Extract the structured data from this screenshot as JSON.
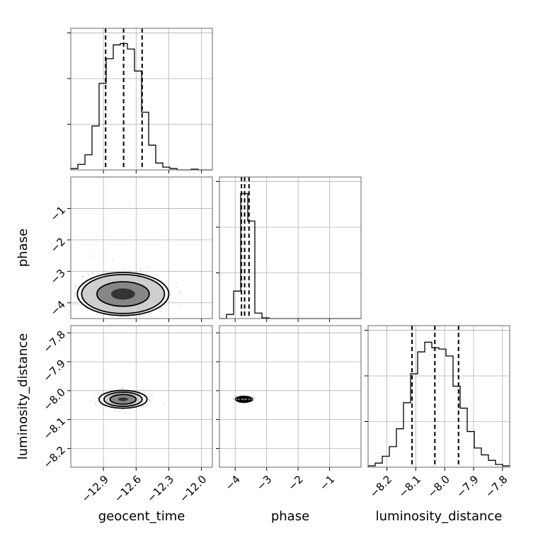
{
  "chart_data": {
    "type": "corner",
    "parameters": [
      "geocent_time",
      "phase",
      "luminosity_distance"
    ],
    "ranges": {
      "geocent_time": [
        -13.2,
        -11.9
      ],
      "phase": [
        -4.5,
        0.0
      ],
      "luminosity_distance": [
        -8.265,
        -7.775
      ]
    },
    "ticks": {
      "geocent_time": [
        -12.9,
        -12.6,
        -12.3,
        -12.0
      ],
      "phase": [
        -4,
        -3,
        -2,
        -1
      ],
      "luminosity_distance": [
        -8.2,
        -8.1,
        -8.0,
        -7.9,
        -7.8
      ]
    },
    "tick_labels": {
      "geocent_time": [
        "−12.9",
        "−12.6",
        "−12.3",
        "−12.0"
      ],
      "phase": [
        "−4",
        "−3",
        "−2",
        "−1"
      ],
      "luminosity_distance": [
        "−8.2",
        "−8.1",
        "−8.0",
        "−7.9",
        "−7.8"
      ]
    },
    "axis_labels": {
      "x": [
        "geocent_time",
        "phase",
        "luminosity_distance"
      ],
      "y": [
        "phase",
        "luminosity_distance"
      ]
    },
    "histograms": {
      "geocent_time": {
        "edges": [
          -13.2,
          -13.135,
          -13.07,
          -13.005,
          -12.94,
          -12.875,
          -12.81,
          -12.745,
          -12.68,
          -12.615,
          -12.55,
          -12.485,
          -12.42,
          -12.355,
          -12.29,
          -12.225,
          -12.16,
          -12.095,
          -12.03,
          -11.965,
          -11.9
        ],
        "counts": [
          0.01,
          0.04,
          0.11,
          0.32,
          0.63,
          0.81,
          0.91,
          0.92,
          0.88,
          0.72,
          0.42,
          0.18,
          0.05,
          0.02,
          0.01,
          0.0,
          0.0,
          0.005,
          0.0,
          0.0
        ],
        "quantiles": [
          -12.88,
          -12.715,
          -12.545
        ]
      },
      "phase": {
        "edges": [
          -4.5,
          -4.275,
          -4.05,
          -3.825,
          -3.6,
          -3.375,
          -3.15,
          -2.925,
          -2.7,
          -2.475,
          -2.25,
          -2.025,
          -1.8,
          -1.575,
          -1.35,
          -1.125,
          -0.9,
          -0.675,
          -0.45,
          -0.225,
          0.0
        ],
        "counts": [
          0.0,
          0.03,
          0.2,
          0.91,
          0.71,
          0.04,
          0.005,
          0.0,
          0.0,
          0.0,
          0.0,
          0.0,
          0.0,
          0.0,
          0.0,
          0.0,
          0.0,
          0.0,
          0.0,
          0.0
        ],
        "quantiles": [
          -3.8,
          -3.7,
          -3.56
        ]
      },
      "luminosity_distance": {
        "edges": [
          -8.265,
          -8.2405,
          -8.216,
          -8.1915,
          -8.167,
          -8.1425,
          -8.118,
          -8.0935,
          -8.069,
          -8.0445,
          -8.02,
          -7.9955,
          -7.971,
          -7.9465,
          -7.922,
          -7.8975,
          -7.873,
          -7.8485,
          -7.824,
          -7.7995,
          -7.775
        ],
        "counts": [
          0.01,
          0.03,
          0.08,
          0.15,
          0.28,
          0.47,
          0.68,
          0.84,
          0.91,
          0.87,
          0.86,
          0.81,
          0.59,
          0.43,
          0.26,
          0.14,
          0.09,
          0.05,
          0.02,
          0.01
        ],
        "quantiles": [
          -8.113,
          -8.034,
          -7.952
        ]
      }
    },
    "contours_2d": [
      {
        "x": "geocent_time",
        "y": "phase",
        "center": [
          -12.72,
          -3.72
        ],
        "spreads": [
          0.42,
          0.38,
          0.24,
          0.11
        ],
        "aspect": 0.47
      },
      {
        "x": "geocent_time",
        "y": "luminosity_distance",
        "center": [
          -12.72,
          -8.03
        ],
        "spreads": [
          0.22,
          0.175,
          0.12,
          0.045
        ],
        "aspect": 0.37
      },
      {
        "x": "phase",
        "y": "luminosity_distance",
        "center": [
          -3.72,
          -8.03
        ],
        "spreads": [
          0.26,
          0.2,
          0.13,
          0.045
        ],
        "aspect": 0.36
      }
    ],
    "grid": true,
    "colors": {
      "line": "#000000",
      "grid": "#b0b0b0",
      "points": "#808080"
    }
  }
}
